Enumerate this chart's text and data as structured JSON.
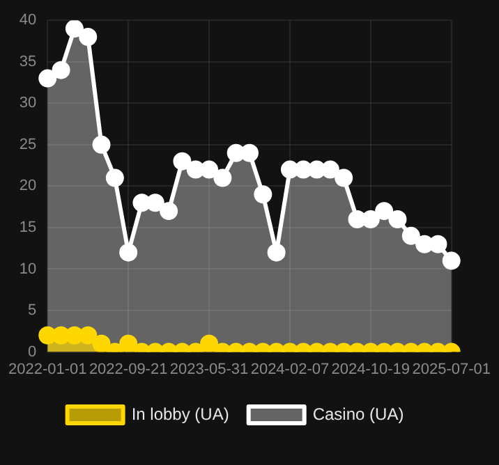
{
  "chart_data": {
    "type": "area",
    "categories": [
      "2022-01-01",
      null,
      null,
      null,
      null,
      null,
      "2022-09-21",
      null,
      null,
      null,
      null,
      null,
      "2023-05-31",
      null,
      null,
      null,
      null,
      null,
      "2024-02-07",
      null,
      null,
      null,
      null,
      null,
      "2024-10-19",
      null,
      null,
      null,
      null,
      null,
      "2025-07-01"
    ],
    "series": [
      {
        "name": "In lobby (UA)",
        "color": "#ffd700",
        "values": [
          2,
          2,
          2,
          2,
          1,
          0,
          1,
          0,
          0,
          0,
          0,
          0,
          1,
          0,
          0,
          0,
          0,
          0,
          0,
          0,
          0,
          0,
          0,
          0,
          0,
          0,
          0,
          0,
          0,
          0,
          0
        ]
      },
      {
        "name": "Casino (UA)",
        "color": "#ffffff",
        "values": [
          33,
          34,
          39,
          38,
          25,
          21,
          12,
          18,
          18,
          17,
          23,
          22,
          22,
          21,
          24,
          24,
          19,
          12,
          22,
          22,
          22,
          22,
          21,
          16,
          16,
          17,
          16,
          14,
          13,
          13,
          11
        ]
      }
    ],
    "ylim": [
      0,
      40
    ],
    "yticks": [
      0,
      5,
      10,
      15,
      20,
      25,
      30,
      35,
      40
    ],
    "grid": true,
    "legend": "bottom",
    "marker": "circle"
  }
}
